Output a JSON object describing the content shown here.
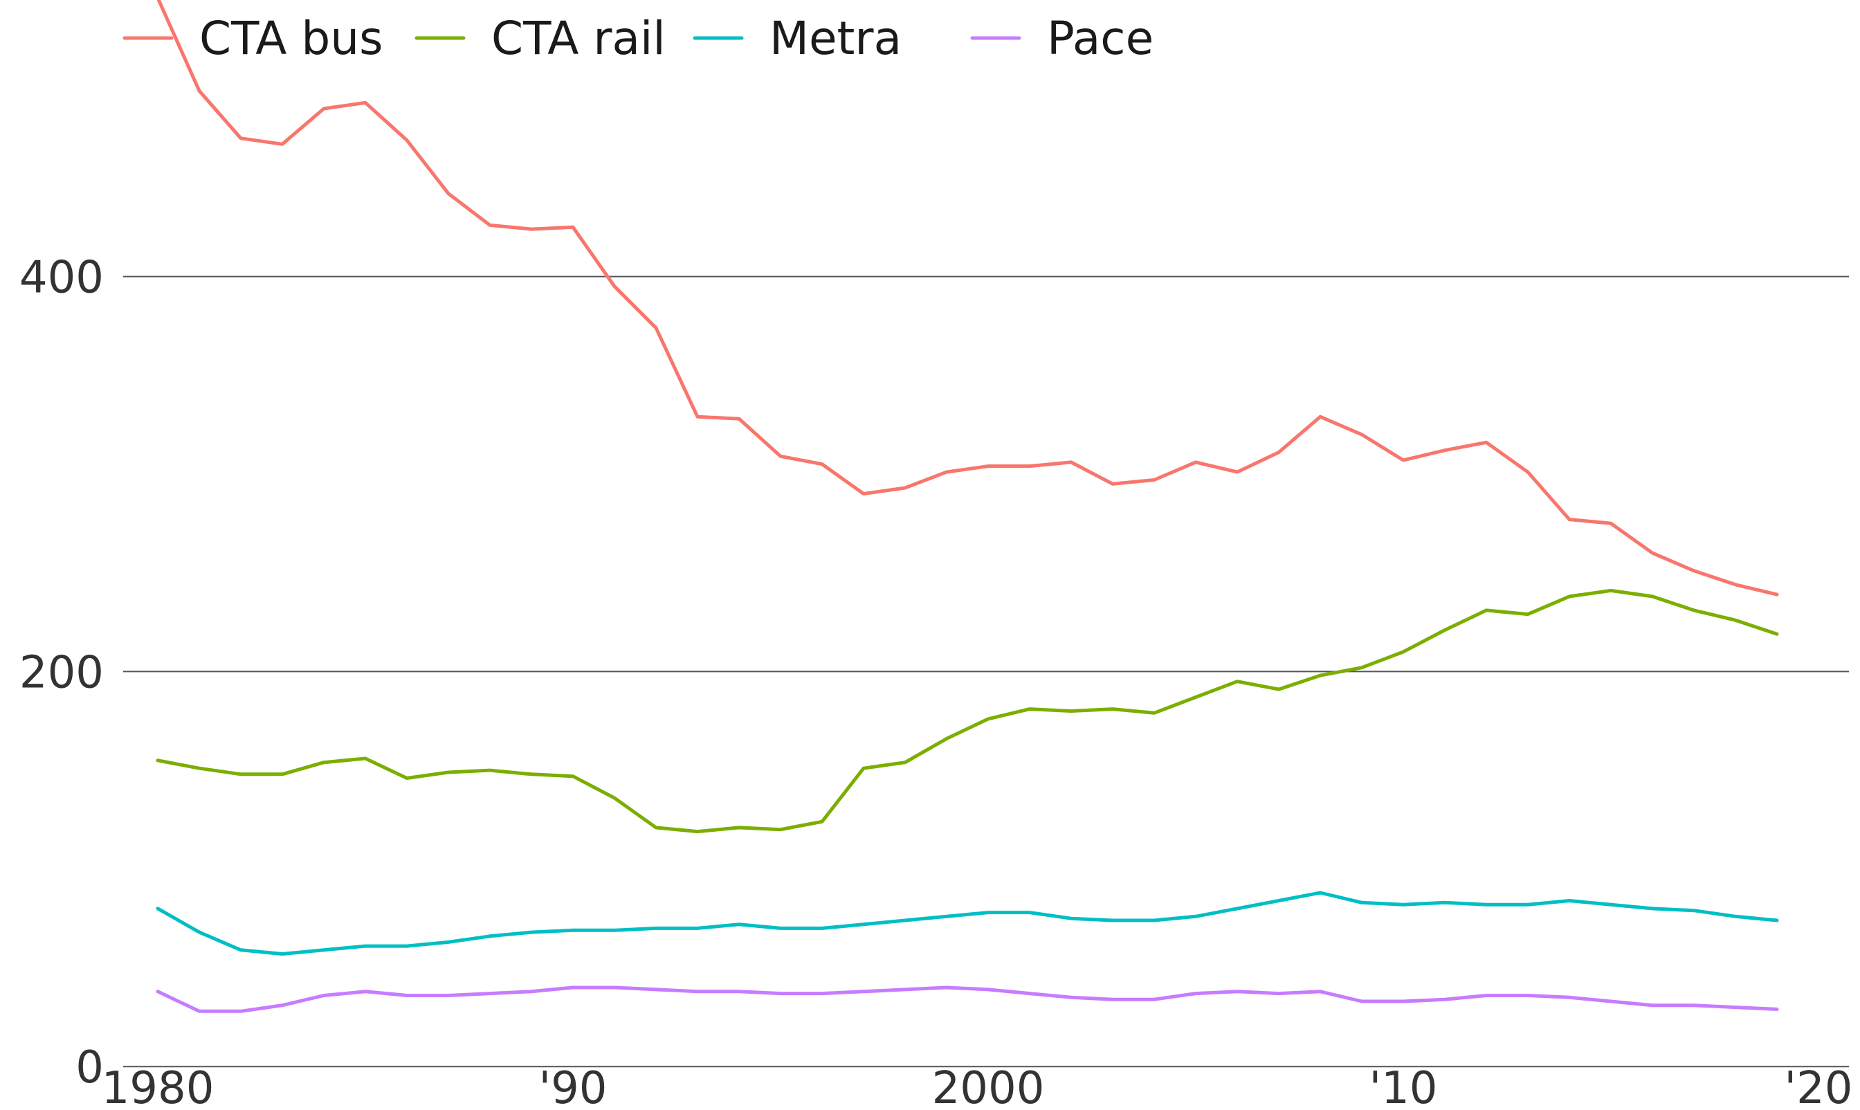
{
  "chart_data": {
    "type": "line",
    "title": "",
    "xlabel": "",
    "ylabel": "",
    "xlim": [
      1976.2,
      2021
    ],
    "ylim": [
      -22,
      540
    ],
    "grid": "horizontal",
    "legend_position": "top-left",
    "x_ticks": [
      {
        "value": 1980,
        "label": "1980"
      },
      {
        "value": 1990,
        "label": "'90"
      },
      {
        "value": 2000,
        "label": "2000"
      },
      {
        "value": 2010,
        "label": "'10"
      },
      {
        "value": 2020,
        "label": "'20"
      }
    ],
    "y_ticks": [
      {
        "value": 0,
        "label": "0"
      },
      {
        "value": 200,
        "label": "200"
      },
      {
        "value": 400,
        "label": "400"
      }
    ],
    "x": [
      1980,
      1981,
      1982,
      1983,
      1984,
      1985,
      1986,
      1987,
      1988,
      1989,
      1990,
      1991,
      1992,
      1993,
      1994,
      1995,
      1996,
      1997,
      1998,
      1999,
      2000,
      2001,
      2002,
      2003,
      2004,
      2005,
      2006,
      2007,
      2008,
      2009,
      2010,
      2011,
      2012,
      2013,
      2014,
      2015,
      2016,
      2017,
      2018,
      2019
    ],
    "series": [
      {
        "name": "CTA bus",
        "color": "#F8766D",
        "values": [
          541,
          494,
          470,
          467,
          485,
          488,
          469,
          442,
          426,
          424,
          425,
          395,
          374,
          329,
          328,
          309,
          305,
          290,
          293,
          301,
          304,
          304,
          306,
          295,
          297,
          306,
          301,
          311,
          329,
          320,
          307,
          312,
          316,
          301,
          277,
          275,
          260,
          251,
          244,
          239
        ]
      },
      {
        "name": "CTA rail",
        "color": "#7CAE00",
        "values": [
          155,
          151,
          148,
          148,
          154,
          156,
          146,
          149,
          150,
          148,
          147,
          136,
          121,
          119,
          121,
          120,
          124,
          151,
          154,
          166,
          176,
          181,
          180,
          181,
          179,
          187,
          195,
          191,
          198,
          202,
          210,
          221,
          231,
          229,
          238,
          241,
          238,
          231,
          226,
          219
        ]
      },
      {
        "name": "Metra",
        "color": "#00BFC4",
        "values": [
          80,
          68,
          59,
          57,
          59,
          61,
          61,
          63,
          66,
          68,
          69,
          69,
          70,
          70,
          72,
          70,
          70,
          72,
          74,
          76,
          78,
          78,
          75,
          74,
          74,
          76,
          80,
          84,
          88,
          83,
          82,
          83,
          82,
          82,
          84,
          82,
          80,
          79,
          76,
          74
        ]
      },
      {
        "name": "Pace",
        "color": "#C77CFF",
        "values": [
          38,
          28,
          28,
          31,
          36,
          38,
          36,
          36,
          37,
          38,
          40,
          40,
          39,
          38,
          38,
          37,
          37,
          38,
          39,
          40,
          39,
          37,
          35,
          34,
          34,
          37,
          38,
          37,
          38,
          33,
          33,
          34,
          36,
          36,
          35,
          33,
          31,
          31,
          30,
          29
        ]
      }
    ]
  }
}
